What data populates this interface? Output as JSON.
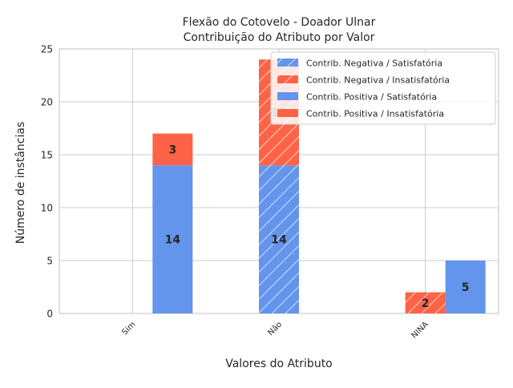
{
  "chart_data": {
    "type": "bar",
    "title": "Flexão do Cotovelo - Doador Ulnar",
    "subtitle": "Contribuição do Atributo por Valor",
    "xlabel": "Valores do Atributo",
    "ylabel": "Número de instâncias",
    "categories": [
      "Sim",
      "Não",
      "NINA"
    ],
    "ylim": [
      0,
      25
    ],
    "yticks": [
      0,
      5,
      10,
      15,
      20,
      25
    ],
    "grid": true,
    "legend_position": "top-right",
    "series": [
      {
        "name": "Contrib. Negativa / Satisfatória",
        "group": "negativa",
        "outcome": "satisfatoria",
        "color": "#6495ED",
        "hatch": true,
        "values": [
          0,
          14,
          0
        ]
      },
      {
        "name": "Contrib. Negativa / Insatisfatória",
        "group": "negativa",
        "outcome": "insatisfatoria",
        "color": "#FF6347",
        "hatch": true,
        "values": [
          0,
          10,
          2
        ]
      },
      {
        "name": "Contrib. Positiva / Satisfatória",
        "group": "positiva",
        "outcome": "satisfatoria",
        "color": "#6495ED",
        "hatch": false,
        "values": [
          14,
          0,
          5
        ]
      },
      {
        "name": "Contrib. Positiva / Insatisfatória",
        "group": "positiva",
        "outcome": "insatisfatoria",
        "color": "#FF6347",
        "hatch": false,
        "values": [
          3,
          0,
          0
        ]
      }
    ]
  }
}
